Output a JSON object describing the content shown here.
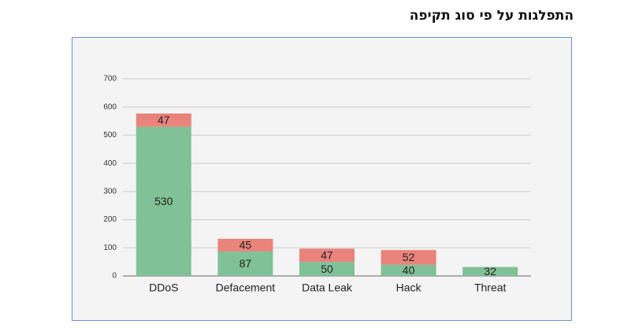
{
  "chart_data": {
    "type": "bar",
    "stacked": true,
    "title": "התפלגות על פי סוג תקיפה",
    "categories": [
      "DDoS",
      "Defacement",
      "Data Leak",
      "Hack",
      "Threat"
    ],
    "series": [
      {
        "color": "#80c197",
        "values": [
          530,
          87,
          50,
          40,
          32
        ]
      },
      {
        "color": "#e9837b",
        "values": [
          47,
          45,
          47,
          52,
          null
        ]
      }
    ],
    "ylim": [
      0,
      700
    ],
    "yticks": [
      0,
      100,
      200,
      300,
      400,
      500,
      600,
      700
    ],
    "grid": true
  }
}
